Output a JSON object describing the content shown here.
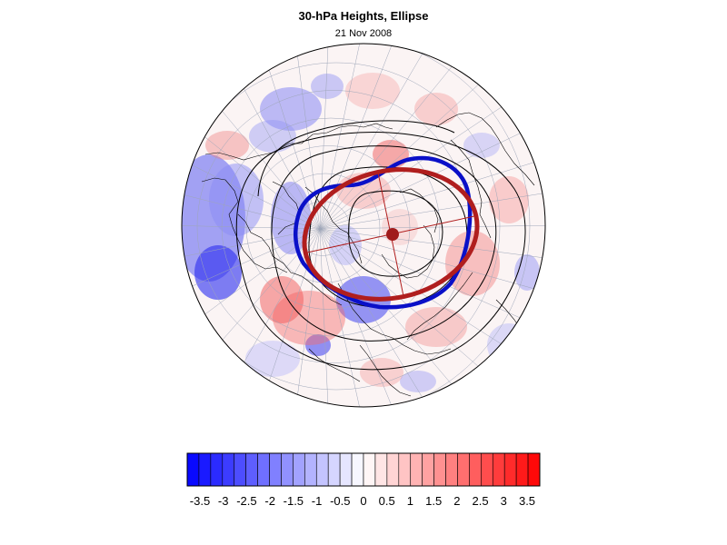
{
  "title": "30-hPa Heights, Ellipse",
  "date": "21 Nov 2008",
  "colorbar": {
    "tick_labels": [
      "-3.5",
      "-3",
      "-2.5",
      "-2",
      "-1.5",
      "-1",
      "-0.5",
      "0",
      "0.5",
      "1",
      "1.5",
      "2",
      "2.5",
      "3",
      "3.5"
    ],
    "min_color": "#0000ff",
    "mid_color": "#ffffff",
    "max_color": "#ff0000"
  },
  "colors": {
    "observed_contour": "#0a10c8",
    "fitted_ellipse": "#b01e1e",
    "ellipse_center": "#a01c1c",
    "height_contours": "#000000"
  }
}
